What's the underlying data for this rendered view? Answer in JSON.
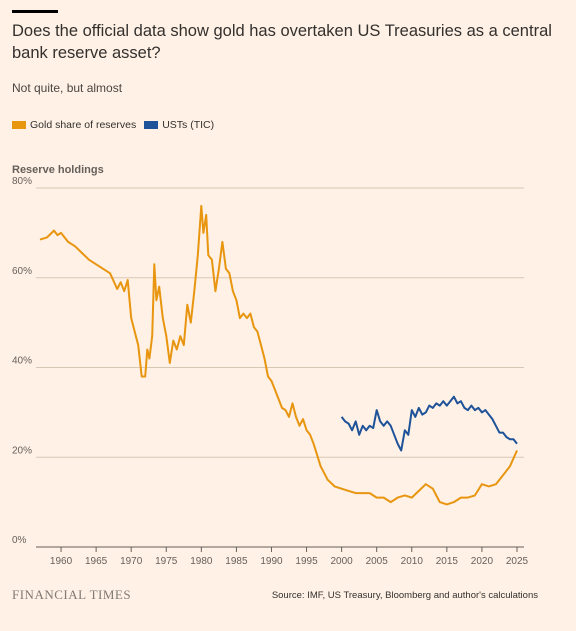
{
  "chart_data": {
    "type": "line",
    "title": "Does the official data show gold has overtaken US Treasuries as a central bank reserve asset?",
    "subtitle": "Not quite, but almost",
    "ylabel": "Reserve holdings",
    "xlim": [
      1957,
      2026
    ],
    "ylim": [
      0,
      80
    ],
    "x_ticks": [
      1960,
      1965,
      1970,
      1975,
      1980,
      1985,
      1990,
      1995,
      2000,
      2005,
      2010,
      2015,
      2020,
      2025
    ],
    "y_ticks": [
      0,
      20,
      40,
      60,
      80
    ],
    "y_tick_labels": [
      "0%",
      "20%",
      "40%",
      "60%",
      "80%"
    ],
    "grid": true,
    "legend_position": "top-left",
    "series": [
      {
        "name": "Gold share of reserves",
        "color": "#e8950f",
        "x": [
          1957,
          1958,
          1959,
          1959.5,
          1960,
          1961,
          1962,
          1963,
          1964,
          1965,
          1966,
          1967,
          1968,
          1968.5,
          1969,
          1969.5,
          1970,
          1971,
          1971.5,
          1972,
          1972.3,
          1972.6,
          1973,
          1973.3,
          1973.6,
          1974,
          1974.5,
          1975,
          1975.5,
          1976,
          1976.5,
          1977,
          1977.5,
          1978,
          1978.5,
          1979,
          1979.5,
          1980,
          1980.3,
          1980.7,
          1981,
          1981.5,
          1982,
          1982.5,
          1983,
          1983.5,
          1984,
          1984.5,
          1985,
          1985.5,
          1986,
          1986.5,
          1987,
          1987.5,
          1988,
          1988.5,
          1989,
          1989.5,
          1990,
          1990.5,
          1991,
          1991.5,
          1992,
          1992.5,
          1993,
          1993.5,
          1994,
          1994.5,
          1995,
          1995.5,
          1996,
          1997,
          1998,
          1999,
          2000,
          2001,
          2002,
          2003,
          2004,
          2005,
          2006,
          2007,
          2008,
          2009,
          2010,
          2011,
          2012,
          2013,
          2014,
          2015,
          2016,
          2017,
          2018,
          2019,
          2020,
          2021,
          2022,
          2023,
          2024,
          2025
        ],
        "y": [
          68.5,
          69,
          70.5,
          69.5,
          70,
          68,
          67,
          65.5,
          64,
          63,
          62,
          61,
          57.5,
          59,
          57,
          59.5,
          51,
          45,
          38,
          38,
          44,
          42,
          47,
          63,
          55,
          58,
          51,
          47,
          41,
          46,
          44,
          47,
          45,
          54,
          50,
          57,
          65,
          76,
          70,
          74,
          65,
          64,
          57,
          62,
          68,
          62,
          61,
          57,
          55,
          51,
          52,
          51,
          52,
          49,
          48,
          45,
          42,
          38,
          37,
          35,
          33,
          31,
          30.5,
          29,
          32,
          29,
          27,
          28.5,
          26,
          25,
          23,
          18,
          15,
          13.5,
          13,
          12.5,
          12,
          12,
          12,
          11,
          11,
          10,
          11,
          11.5,
          11,
          12.5,
          14,
          13,
          10,
          9.5,
          10,
          11,
          11,
          11.5,
          14,
          13.5,
          14,
          16,
          18,
          21.5
        ]
      },
      {
        "name": "USTs (TIC)",
        "color": "#1e5299",
        "x": [
          2000,
          2000.5,
          2001,
          2001.5,
          2002,
          2002.5,
          2003,
          2003.5,
          2004,
          2004.5,
          2005,
          2005.5,
          2006,
          2006.5,
          2007,
          2007.5,
          2008,
          2008.5,
          2009,
          2009.5,
          2010,
          2010.5,
          2011,
          2011.5,
          2012,
          2012.5,
          2013,
          2013.5,
          2014,
          2014.5,
          2015,
          2015.5,
          2016,
          2016.5,
          2017,
          2017.5,
          2018,
          2018.5,
          2019,
          2019.5,
          2020,
          2020.5,
          2021,
          2021.5,
          2022,
          2022.5,
          2023,
          2023.5,
          2024,
          2024.5,
          2025
        ],
        "y": [
          29,
          28,
          27.5,
          26,
          28,
          25,
          27,
          26,
          27,
          26.5,
          30.5,
          28,
          27,
          28,
          27,
          25,
          23,
          21.5,
          26,
          25,
          30.5,
          29,
          31,
          29.5,
          30,
          31.5,
          31,
          32,
          31.5,
          32.5,
          31.5,
          32.5,
          33.5,
          32,
          32.5,
          31,
          30.5,
          31.5,
          30.5,
          31,
          30,
          30.5,
          29.5,
          28.5,
          27,
          25.5,
          25.5,
          24.5,
          24,
          24,
          23
        ]
      }
    ]
  },
  "source": "Source: IMF, US Treasury, Bloomberg and author's calculations",
  "brand": "FINANCIAL TIMES"
}
